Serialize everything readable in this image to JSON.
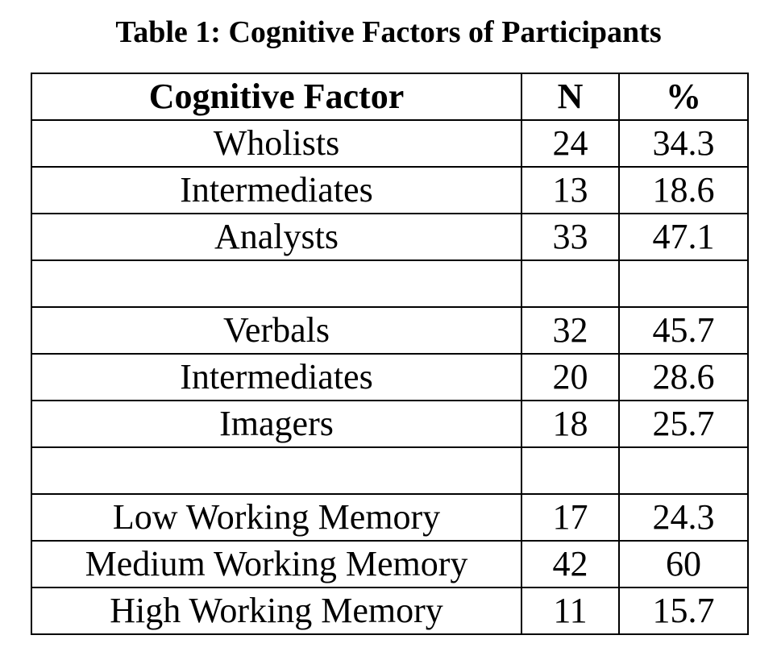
{
  "caption": "Table 1: Cognitive Factors of Participants",
  "table": {
    "headers": [
      "Cognitive Factor",
      "N",
      "%"
    ],
    "rows": [
      {
        "factor": "Wholists",
        "n": "24",
        "pct": "34.3"
      },
      {
        "factor": "Intermediates",
        "n": "13",
        "pct": "18.6"
      },
      {
        "factor": "Analysts",
        "n": "33",
        "pct": "47.1"
      },
      {
        "factor": "",
        "n": "",
        "pct": ""
      },
      {
        "factor": "Verbals",
        "n": "32",
        "pct": "45.7"
      },
      {
        "factor": "Intermediates",
        "n": "20",
        "pct": "28.6"
      },
      {
        "factor": "Imagers",
        "n": "18",
        "pct": "25.7"
      },
      {
        "factor": "",
        "n": "",
        "pct": ""
      },
      {
        "factor": "Low Working Memory",
        "n": "17",
        "pct": "24.3"
      },
      {
        "factor": "Medium Working Memory",
        "n": "42",
        "pct": "60"
      },
      {
        "factor": "High Working Memory",
        "n": "11",
        "pct": "15.7"
      }
    ]
  }
}
